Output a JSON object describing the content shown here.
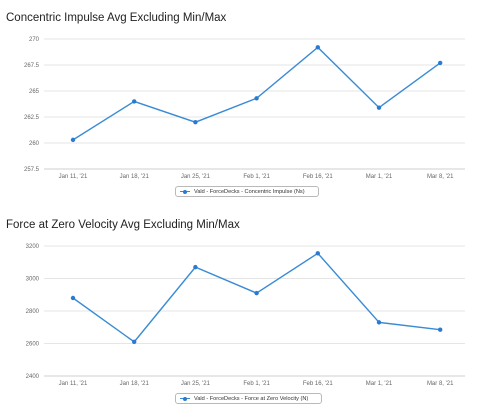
{
  "chart_data": [
    {
      "type": "line",
      "title": "Concentric Impulse Avg Excluding Min/Max",
      "xlabel": "",
      "ylabel": "",
      "categories": [
        "Jan 11, '21",
        "Jan 18, '21",
        "Jan 25, '21",
        "Feb 1, '21",
        "Feb 16, '21",
        "Mar 1, '21",
        "Mar 8, '21"
      ],
      "y_ticks": [
        "257.5",
        "260",
        "262.5",
        "265",
        "267.5",
        "270"
      ],
      "ylim": [
        257.5,
        270
      ],
      "grid": true,
      "legend_position": "bottom",
      "series": [
        {
          "name": "Vald - ForceDecks - Concentric Impulse (Ns)",
          "color": "#2a7bd0",
          "values": [
            260.3,
            264.0,
            262.0,
            264.3,
            269.2,
            263.4,
            267.7
          ]
        }
      ]
    },
    {
      "type": "line",
      "title": "Force at Zero Velocity Avg Excluding Min/Max",
      "xlabel": "",
      "ylabel": "",
      "categories": [
        "Jan 11, '21",
        "Jan 18, '21",
        "Jan 25, '21",
        "Feb 1, '21",
        "Feb 16, '21",
        "Mar 1, '21",
        "Mar 8, '21"
      ],
      "y_ticks": [
        "2400",
        "2600",
        "2800",
        "3000",
        "3200"
      ],
      "ylim": [
        2400,
        3200
      ],
      "grid": true,
      "legend_position": "bottom",
      "series": [
        {
          "name": "Vald - ForceDecks - Force at Zero Velocity (N)",
          "color": "#2a7bd0",
          "values": [
            2880,
            2610,
            3070,
            2910,
            3155,
            2730,
            2685
          ]
        }
      ]
    }
  ]
}
